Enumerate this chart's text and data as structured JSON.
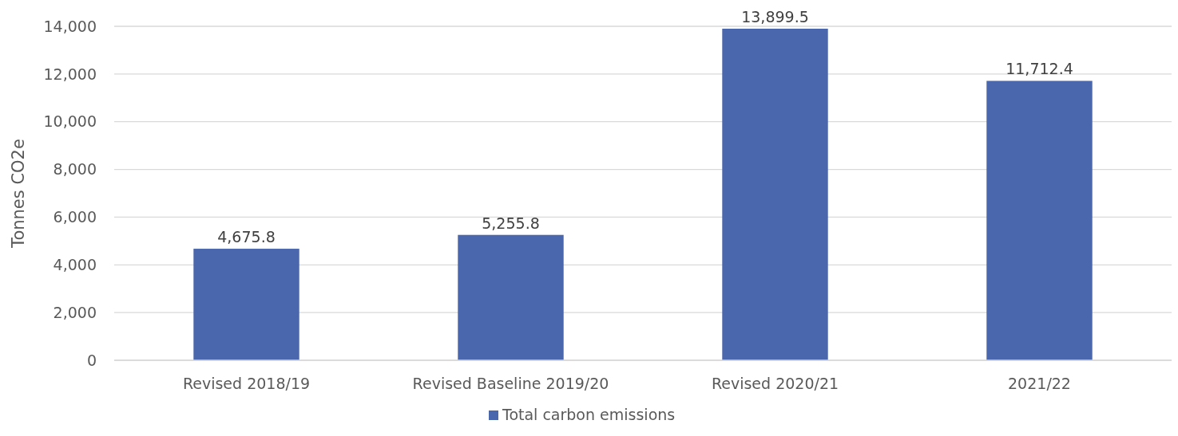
{
  "chart_data": {
    "type": "bar",
    "ylabel": "Tonnes CO2e",
    "categories": [
      "Revised 2018/19",
      "Revised Baseline 2019/20",
      "Revised 2020/21",
      "2021/22"
    ],
    "series": [
      {
        "name": "Total carbon emissions",
        "color": "#4a66ac",
        "values": [
          4675.8,
          5255.8,
          13899.5,
          11712.4
        ]
      }
    ],
    "value_labels": [
      "4,675.8",
      "5,255.8",
      "13,899.5",
      "11,712.4"
    ],
    "ylim": [
      0,
      14000
    ],
    "yticks": [
      0,
      {
        "value": 2000,
        "label": "2,000"
      },
      {
        "value": 4000,
        "label": "4,000"
      },
      {
        "value": 6000,
        "label": "6,000"
      },
      {
        "value": 8000,
        "label": "8,000"
      },
      {
        "value": 10000,
        "label": "10,000"
      },
      {
        "value": 12000,
        "label": "12,000"
      },
      {
        "value": 14000,
        "label": "14,000"
      }
    ],
    "grid": "y",
    "legend": "bottom"
  }
}
